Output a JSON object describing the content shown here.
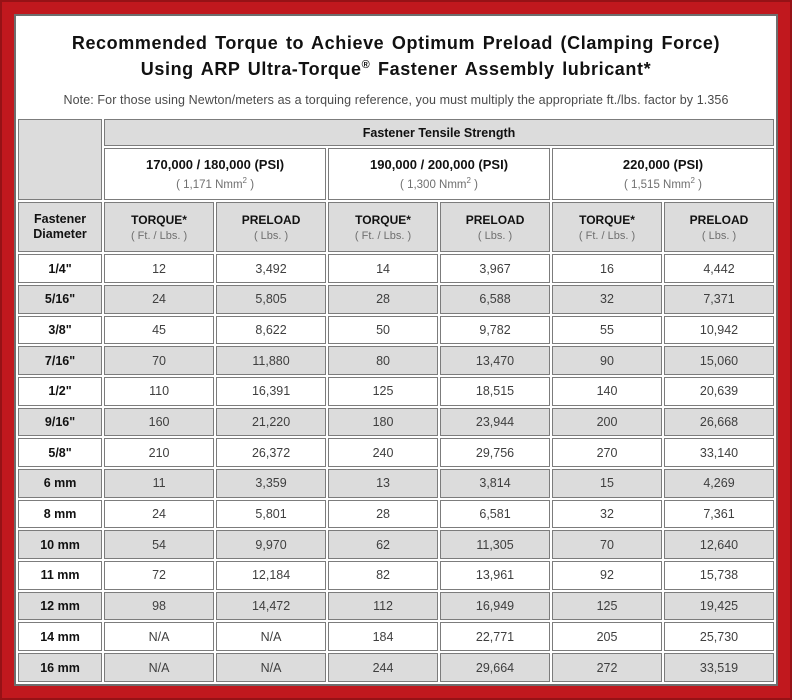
{
  "colors": {
    "frame_red": "#c1181e",
    "frame_red_dark": "#961216",
    "inner_border_gray": "#6e6e6e",
    "cell_border_gray": "#7c7c7c",
    "row_stripe_gray": "#dcdcdc"
  },
  "title": {
    "line1": "Recommended Torque to Achieve Optimum Preload (Clamping Force)",
    "line2_pre": "Using ARP Ultra-Torque",
    "line2_sup": "®",
    "line2_post": " Fastener Assembly lubricant*",
    "note": "Note: For those using Newton/meters as a torquing reference, you must multiply the appropriate ft./lbs. factor by 1.356"
  },
  "table": {
    "tensile_header": "Fastener Tensile Strength",
    "diameter_header_line1": "Fastener",
    "diameter_header_line2": "Diameter",
    "strength_groups": [
      {
        "psi": "170,000 / 180,000 (PSI)",
        "nmm_pre": "( 1,171 Nmm",
        "nmm_sup": "2",
        "nmm_post": " )"
      },
      {
        "psi": "190,000 / 200,000 (PSI)",
        "nmm_pre": "( 1,300 Nmm",
        "nmm_sup": "2",
        "nmm_post": " )"
      },
      {
        "psi": "220,000 (PSI)",
        "nmm_pre": "( 1,515 Nmm",
        "nmm_sup": "2",
        "nmm_post": " )"
      }
    ],
    "col_headers": {
      "torque": "TORQUE*",
      "torque_sub": "( Ft. / Lbs. )",
      "preload": "PRELOAD",
      "preload_sub": "( Lbs. )"
    },
    "rows": [
      {
        "diameter": "1/4\"",
        "values": [
          "12",
          "3,492",
          "14",
          "3,967",
          "16",
          "4,442"
        ]
      },
      {
        "diameter": "5/16\"",
        "values": [
          "24",
          "5,805",
          "28",
          "6,588",
          "32",
          "7,371"
        ]
      },
      {
        "diameter": "3/8\"",
        "values": [
          "45",
          "8,622",
          "50",
          "9,782",
          "55",
          "10,942"
        ]
      },
      {
        "diameter": "7/16\"",
        "values": [
          "70",
          "11,880",
          "80",
          "13,470",
          "90",
          "15,060"
        ]
      },
      {
        "diameter": "1/2\"",
        "values": [
          "110",
          "16,391",
          "125",
          "18,515",
          "140",
          "20,639"
        ]
      },
      {
        "diameter": "9/16\"",
        "values": [
          "160",
          "21,220",
          "180",
          "23,944",
          "200",
          "26,668"
        ]
      },
      {
        "diameter": "5/8\"",
        "values": [
          "210",
          "26,372",
          "240",
          "29,756",
          "270",
          "33,140"
        ]
      },
      {
        "diameter": "6 mm",
        "values": [
          "11",
          "3,359",
          "13",
          "3,814",
          "15",
          "4,269"
        ]
      },
      {
        "diameter": "8 mm",
        "values": [
          "24",
          "5,801",
          "28",
          "6,581",
          "32",
          "7,361"
        ]
      },
      {
        "diameter": "10 mm",
        "values": [
          "54",
          "9,970",
          "62",
          "11,305",
          "70",
          "12,640"
        ]
      },
      {
        "diameter": "11 mm",
        "values": [
          "72",
          "12,184",
          "82",
          "13,961",
          "92",
          "15,738"
        ]
      },
      {
        "diameter": "12 mm",
        "values": [
          "98",
          "14,472",
          "112",
          "16,949",
          "125",
          "19,425"
        ]
      },
      {
        "diameter": "14 mm",
        "values": [
          "N/A",
          "N/A",
          "184",
          "22,771",
          "205",
          "25,730"
        ]
      },
      {
        "diameter": "16 mm",
        "values": [
          "N/A",
          "N/A",
          "244",
          "29,664",
          "272",
          "33,519"
        ]
      }
    ]
  }
}
